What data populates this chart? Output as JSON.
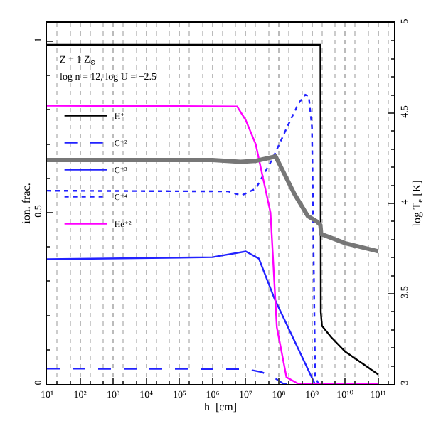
{
  "chart_data": {
    "type": "line",
    "xlabel": "h  [cm]",
    "ylabel": "ion. frac.",
    "y2label": "log T$_{e}$ [K]",
    "annotations": [
      "Z = 1 Z$_{⊙}$",
      "log n = 12, log U = −2.5"
    ],
    "log": "x",
    "grid": "x",
    "legend": "top left",
    "marker": "none",
    "xlim": [
      10,
      300000000000
    ],
    "xticks": [
      {
        "value": 10,
        "label": "10¹"
      },
      {
        "value": 100,
        "label": "10²"
      },
      {
        "value": 1000,
        "label": "10³"
      },
      {
        "value": 10000,
        "label": "10⁴"
      },
      {
        "value": 100000,
        "label": "10⁵"
      },
      {
        "value": 1000000,
        "label": "10⁶"
      },
      {
        "value": 10000000,
        "label": "10⁷"
      },
      {
        "value": 100000000,
        "label": "10⁸"
      },
      {
        "value": 1000000000,
        "label": "10⁹"
      },
      {
        "value": 10000000000,
        "label": "10¹⁰"
      },
      {
        "value": 100000000000,
        "label": "10¹¹"
      }
    ],
    "ylim": [
      0,
      1.054
    ],
    "yticks": [
      0,
      0.5,
      1
    ],
    "y2lim": [
      3,
      5
    ],
    "y2ticks": [
      3,
      3.5,
      4,
      4.5,
      5
    ],
    "series": [
      {
        "name": "H⁺",
        "color": "#000000",
        "line_style": "solid",
        "x": [
          10,
          1000000000,
          1800000000,
          1850000000,
          2000000000,
          3700000000,
          10000000000,
          100000000000
        ],
        "values": [
          0.99,
          0.99,
          0.99,
          0.21,
          0.17,
          0.138,
          0.095,
          0.028
        ]
      },
      {
        "name": "C⁺²",
        "color": "#2222ff",
        "line_style": "dashed",
        "x": [
          10,
          10000000,
          30000000,
          70000000,
          140000000,
          100000000000
        ],
        "values": [
          0.045,
          0.044,
          0.035,
          0.02,
          0,
          0
        ]
      },
      {
        "name": "C⁺³",
        "color": "#2222ff",
        "line_style": "solid",
        "x": [
          10,
          1000000,
          10000000,
          25000000,
          74000000,
          1230000000,
          100000000000
        ],
        "values": [
          0.364,
          0.37,
          0.387,
          0.366,
          0.249,
          0,
          0
        ]
      },
      {
        "name": "C⁺⁴",
        "color": "#2222ff",
        "line_style": "dotted",
        "x": [
          10,
          3000000,
          7400000,
          20000000,
          63000000,
          200000000,
          400000000,
          630000000,
          800000000,
          1000000000,
          1150000000,
          1250000000,
          1600000000,
          100000000000
        ],
        "values": [
          0.564,
          0.562,
          0.55,
          0.57,
          0.655,
          0.76,
          0.82,
          0.844,
          0.84,
          0.75,
          0.3,
          0.02,
          0,
          0
        ]
      },
      {
        "name": "He⁺²",
        "color": "#ff00ff",
        "line_style": "solid",
        "x": [
          10,
          5500000,
          10000000,
          20000000,
          56000000,
          87000000,
          170000000,
          400000000,
          100000000000
        ],
        "values": [
          0.812,
          0.81,
          0.77,
          0.7,
          0.5,
          0.166,
          0.02,
          0,
          0
        ]
      },
      {
        "color": "#777777",
        "line_style": "solid",
        "axis": "y2",
        "x": [
          10,
          1000000,
          7000000,
          20000000,
          80000000,
          300000000,
          750000000,
          1400000000,
          1800000000,
          1900000000,
          10000000000,
          100000000000
        ],
        "values": [
          4.24,
          4.24,
          4.23,
          4.235,
          4.26,
          4.05,
          3.93,
          3.9,
          3.88,
          3.83,
          3.78,
          3.735
        ]
      }
    ]
  }
}
